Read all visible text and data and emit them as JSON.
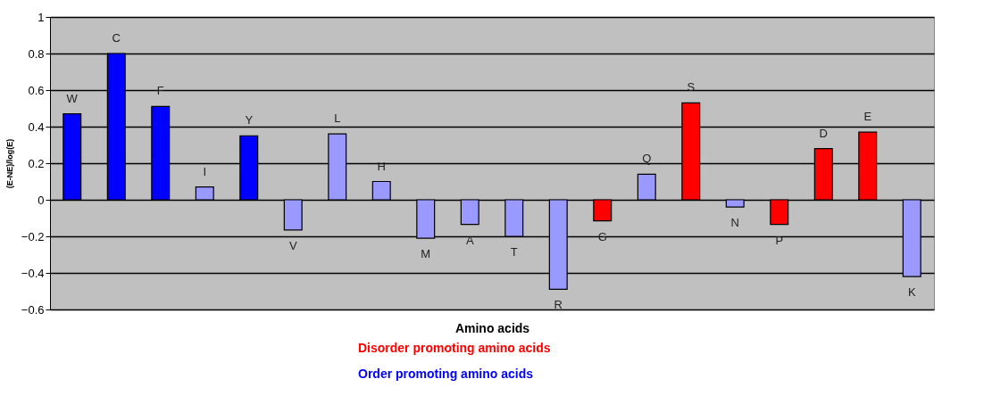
{
  "chart_data": {
    "type": "bar",
    "xlabel": "Amino acids",
    "ylabel": "(E-NE)/log(E)",
    "categories": [
      "W",
      "C",
      "F",
      "I",
      "Y",
      "V",
      "L",
      "H",
      "M",
      "A",
      "T",
      "R",
      "G",
      "Q",
      "S",
      "N",
      "P",
      "D",
      "E",
      "K"
    ],
    "series": [
      {
        "name": "Disorder promoting amino acids",
        "color": "#ff0000",
        "values": [
          null,
          null,
          null,
          null,
          null,
          null,
          null,
          null,
          null,
          null,
          null,
          null,
          -0.115,
          null,
          0.53,
          null,
          -0.135,
          0.28,
          0.37,
          null
        ]
      },
      {
        "name": "Order promoting amino acids",
        "color": "#0000ff",
        "values": [
          0.47,
          0.8,
          0.51,
          null,
          0.35,
          null,
          null,
          null,
          null,
          null,
          null,
          null,
          null,
          null,
          null,
          null,
          null,
          null,
          null,
          null
        ]
      },
      {
        "color": "#9999ff",
        "values": [
          null,
          null,
          null,
          0.07,
          null,
          -0.165,
          0.36,
          0.1,
          -0.21,
          -0.135,
          -0.2,
          -0.49,
          null,
          0.14,
          null,
          -0.04,
          null,
          null,
          null,
          -0.42
        ]
      }
    ],
    "ylim": [
      -0.6,
      1
    ],
    "yticks": [
      -0.6,
      -0.4,
      -0.2,
      0,
      0.2,
      0.4,
      0.6,
      0.8,
      1
    ],
    "grid": "y",
    "legend": "bottom",
    "tick_labels": "y"
  }
}
